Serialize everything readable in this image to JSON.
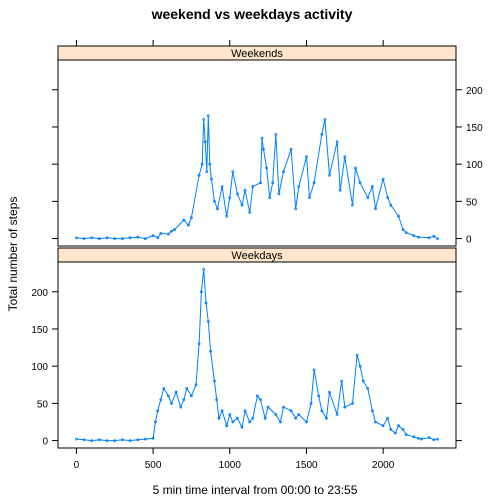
{
  "chart_data": {
    "type": "line",
    "title": "weekend vs weekdays activity",
    "xlabel": "5 min time interval from 00:00 to 23:55",
    "ylabel": "Total number of steps",
    "xlim": [
      -120,
      2475
    ],
    "ylim": [
      -10,
      240
    ],
    "x_ticks": [
      "0",
      "500",
      "1000",
      "1500",
      "2000"
    ],
    "y_ticks": [
      "0",
      "50",
      "100",
      "150",
      "200"
    ],
    "grid": false,
    "marker": "point",
    "color": "#0080ff",
    "panels": [
      {
        "strip": "Weekends",
        "series": {
          "x": [
            0,
            50,
            100,
            150,
            200,
            250,
            300,
            350,
            400,
            450,
            500,
            530,
            550,
            600,
            620,
            640,
            700,
            730,
            750,
            800,
            820,
            830,
            840,
            850,
            860,
            870,
            880,
            900,
            920,
            950,
            980,
            1000,
            1020,
            1050,
            1080,
            1100,
            1130,
            1150,
            1200,
            1210,
            1220,
            1240,
            1260,
            1280,
            1300,
            1320,
            1350,
            1400,
            1430,
            1450,
            1500,
            1520,
            1550,
            1600,
            1620,
            1650,
            1700,
            1720,
            1750,
            1800,
            1820,
            1850,
            1900,
            1930,
            1950,
            2000,
            2030,
            2050,
            2100,
            2130,
            2150,
            2200,
            2230,
            2300,
            2330,
            2355
          ],
          "values": [
            1,
            0,
            1,
            0,
            1,
            0,
            0,
            1,
            2,
            0,
            4,
            1,
            7,
            6,
            10,
            12,
            25,
            18,
            28,
            85,
            100,
            160,
            130,
            90,
            165,
            100,
            80,
            50,
            40,
            70,
            30,
            55,
            90,
            60,
            45,
            65,
            35,
            70,
            75,
            135,
            120,
            95,
            55,
            75,
            140,
            60,
            90,
            120,
            40,
            70,
            110,
            55,
            75,
            140,
            160,
            85,
            130,
            65,
            110,
            45,
            95,
            75,
            55,
            70,
            40,
            80,
            55,
            45,
            30,
            12,
            8,
            4,
            2,
            1,
            3,
            0
          ]
        }
      },
      {
        "strip": "Weekdays",
        "series": {
          "x": [
            0,
            50,
            100,
            150,
            200,
            250,
            300,
            350,
            400,
            450,
            500,
            515,
            530,
            550,
            570,
            600,
            620,
            650,
            680,
            700,
            720,
            750,
            780,
            800,
            815,
            830,
            845,
            860,
            875,
            900,
            915,
            930,
            950,
            980,
            1000,
            1020,
            1050,
            1080,
            1100,
            1130,
            1150,
            1180,
            1200,
            1230,
            1250,
            1300,
            1330,
            1350,
            1400,
            1430,
            1450,
            1500,
            1530,
            1550,
            1580,
            1600,
            1630,
            1650,
            1700,
            1730,
            1750,
            1800,
            1830,
            1850,
            1870,
            1900,
            1930,
            1950,
            2000,
            2030,
            2050,
            2080,
            2100,
            2130,
            2150,
            2200,
            2230,
            2250,
            2300,
            2330,
            2355
          ],
          "values": [
            2,
            1,
            0,
            1,
            0,
            0,
            1,
            0,
            1,
            2,
            3,
            25,
            40,
            55,
            70,
            60,
            50,
            65,
            45,
            55,
            70,
            60,
            75,
            130,
            200,
            230,
            185,
            160,
            120,
            80,
            55,
            30,
            40,
            20,
            35,
            25,
            30,
            18,
            40,
            25,
            30,
            60,
            55,
            30,
            45,
            35,
            25,
            45,
            40,
            30,
            35,
            25,
            50,
            95,
            60,
            40,
            30,
            65,
            35,
            80,
            45,
            50,
            115,
            100,
            80,
            70,
            40,
            25,
            20,
            30,
            15,
            10,
            20,
            15,
            8,
            5,
            3,
            2,
            4,
            1,
            2
          ]
        }
      }
    ]
  }
}
